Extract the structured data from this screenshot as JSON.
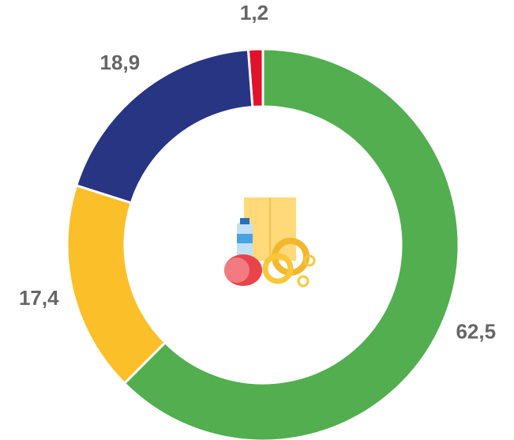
{
  "chart_data": {
    "type": "donut",
    "categories": [
      null,
      null,
      null,
      null
    ],
    "values": [
      62.5,
      17.4,
      18.9,
      1.2
    ],
    "value_labels": [
      "62,5",
      "17,4",
      "18,9",
      "1,2"
    ],
    "colors": [
      "#52ae4f",
      "#fbbf2a",
      "#283583",
      "#e3122c"
    ]
  }
}
